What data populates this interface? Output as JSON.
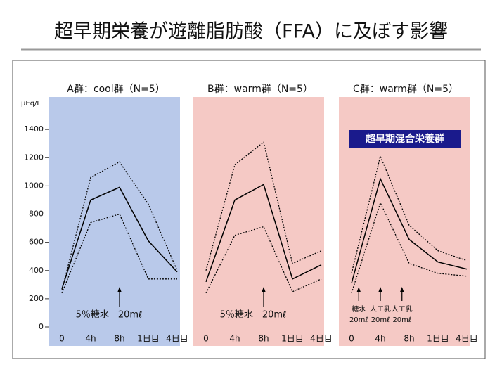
{
  "title": "超早期栄養が遊離脂肪酸（FFA）に及ぼす影響",
  "chart_data": [
    {
      "type": "line",
      "title": "A群：cool群（N=5）",
      "ylabel": "μEq/L",
      "background": "#b9c9ea",
      "categories": [
        "0",
        "4h",
        "8h",
        "1日目",
        "4日目"
      ],
      "series": [
        {
          "color": "#000000",
          "style": "solid",
          "values": [
            270,
            900,
            990,
            610,
            390
          ]
        },
        {
          "color": "#000000",
          "style": "dotted",
          "values": [
            260,
            1060,
            1170,
            870,
            400
          ]
        },
        {
          "color": "#000000",
          "style": "dotted",
          "values": [
            240,
            740,
            800,
            340,
            340
          ]
        }
      ],
      "ylim": [
        0,
        1620
      ],
      "yticks": [
        0,
        200,
        400,
        600,
        800,
        1000,
        1200,
        1400
      ],
      "annotations": [
        [
          "5％糖水　20mℓ"
        ]
      ]
    },
    {
      "type": "line",
      "title": "B群：warm群（N=5）",
      "background": "#f5c9c5",
      "categories": [
        "0",
        "4h",
        "8h",
        "1日目",
        "4日目"
      ],
      "series": [
        {
          "color": "#000000",
          "style": "solid",
          "values": [
            320,
            900,
            1010,
            340,
            440
          ]
        },
        {
          "color": "#000000",
          "style": "dotted",
          "values": [
            400,
            1150,
            1310,
            450,
            540
          ]
        },
        {
          "color": "#000000",
          "style": "dotted",
          "values": [
            240,
            650,
            710,
            250,
            340
          ]
        }
      ],
      "ylim": [
        0,
        1620
      ],
      "annotations": [
        [
          "5％糖水　20mℓ"
        ]
      ]
    },
    {
      "type": "line",
      "title": "C群：warm群（N=5）",
      "background": "#f5c9c5",
      "badge": "超早期混合栄養群",
      "categories": [
        "0",
        "4h",
        "8h",
        "1日目",
        "4日目"
      ],
      "series": [
        {
          "color": "#000000",
          "style": "solid",
          "values": [
            310,
            1050,
            620,
            460,
            410
          ]
        },
        {
          "color": "#000000",
          "style": "dotted",
          "values": [
            380,
            1210,
            720,
            540,
            470
          ]
        },
        {
          "color": "#000000",
          "style": "dotted",
          "values": [
            240,
            880,
            450,
            380,
            360
          ]
        }
      ],
      "ylim": [
        0,
        1620
      ],
      "annotations": [
        [
          "糖水",
          "20mℓ"
        ],
        [
          "人工乳",
          "20mℓ"
        ],
        [
          "人工乳",
          "20mℓ"
        ]
      ]
    }
  ]
}
